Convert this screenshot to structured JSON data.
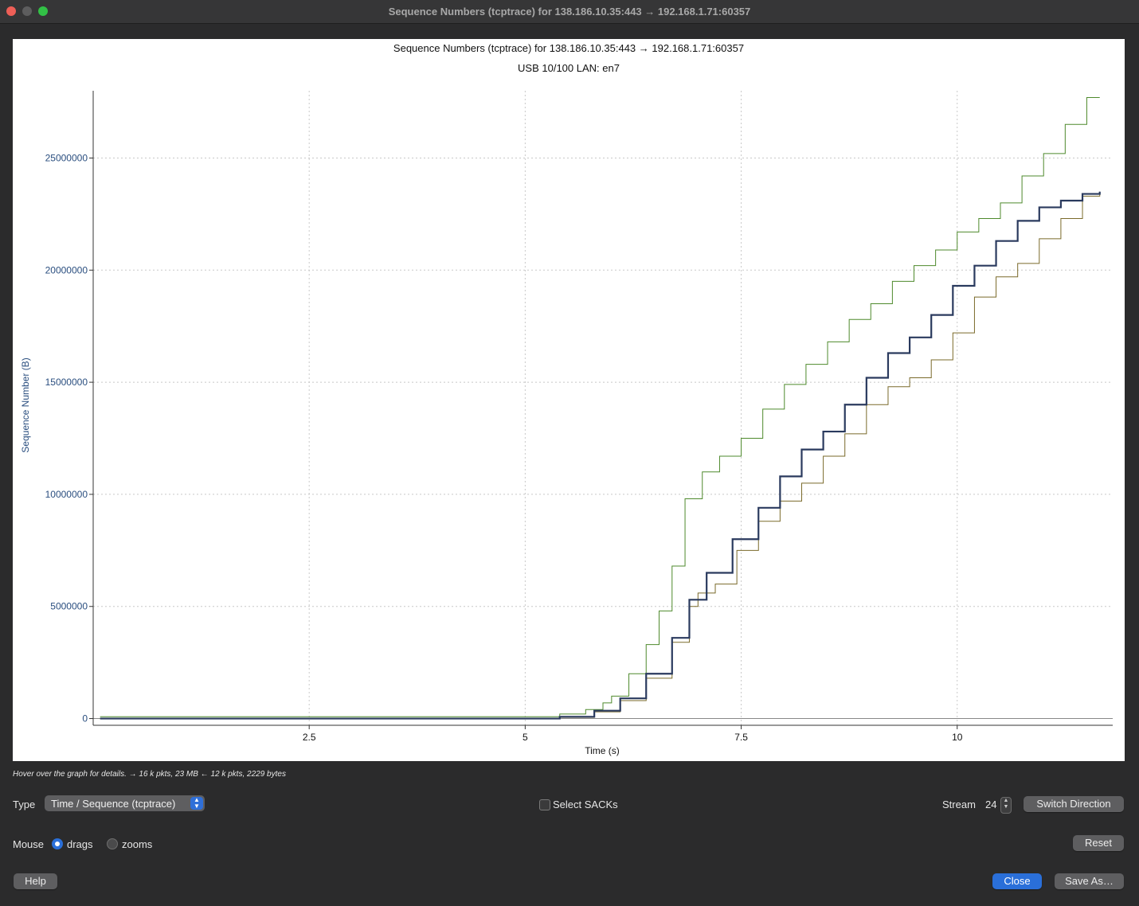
{
  "window": {
    "title": "Sequence Numbers (tcptrace) for 138.186.10.35:443 → 192.168.1.71:60357"
  },
  "plot": {
    "title": "Sequence Numbers (tcptrace) for 138.186.10.35:443 → 192.168.1.71:60357",
    "subtitle": "USB 10/100 LAN: en7",
    "hint": "Hover over the graph for details. → 16 k pkts, 23 MB ← 12 k pkts, 2229 bytes"
  },
  "chart_data": {
    "type": "line",
    "title": "Sequence Numbers (tcptrace) for 138.186.10.35:443 → 192.168.1.71:60357",
    "subtitle": "USB 10/100 LAN: en7",
    "xlabel": "Time (s)",
    "ylabel": "Sequence Number (B)",
    "xlim": [
      0,
      11.8
    ],
    "ylim": [
      -300000,
      28000000
    ],
    "x_ticks": [
      2.5,
      5,
      7.5,
      10
    ],
    "x_tick_labels": [
      "2.5",
      "5",
      "7.5",
      "10"
    ],
    "y_ticks": [
      0,
      5000000,
      10000000,
      15000000,
      20000000,
      25000000
    ],
    "y_tick_labels": [
      "0",
      "5000000",
      "10000000",
      "15000000",
      "20000000",
      "25000000"
    ],
    "grid": true,
    "series": [
      {
        "color": "#4e8a2c",
        "x": [
          0.08,
          5.0,
          5.4,
          5.7,
          5.9,
          6.0,
          6.2,
          6.4,
          6.55,
          6.7,
          6.85,
          7.05,
          7.25,
          7.5,
          7.75,
          8.0,
          8.25,
          8.5,
          8.75,
          9.0,
          9.25,
          9.5,
          9.75,
          10.0,
          10.25,
          10.5,
          10.75,
          11.0,
          11.25,
          11.5,
          11.65
        ],
        "y": [
          80000,
          80000,
          200000,
          400000,
          700000,
          1000000,
          2000000,
          3300000,
          4800000,
          6800000,
          9800000,
          11000000,
          11700000,
          12500000,
          13800000,
          14900000,
          15800000,
          16800000,
          17800000,
          18500000,
          19500000,
          20200000,
          20900000,
          21700000,
          22300000,
          23000000,
          24200000,
          25200000,
          26500000,
          27700000,
          27700000
        ]
      },
      {
        "color": "#7a6a2a",
        "x": [
          0.08,
          5.0,
          5.4,
          5.8,
          6.1,
          6.4,
          6.7,
          6.9,
          7.0,
          7.2,
          7.45,
          7.7,
          7.95,
          8.2,
          8.45,
          8.7,
          8.95,
          9.2,
          9.45,
          9.7,
          9.95,
          10.2,
          10.45,
          10.7,
          10.95,
          11.2,
          11.45,
          11.65
        ],
        "y": [
          0,
          0,
          50000,
          300000,
          800000,
          1800000,
          3400000,
          5000000,
          5600000,
          6000000,
          7500000,
          8800000,
          9700000,
          10500000,
          11700000,
          12700000,
          14000000,
          14800000,
          15200000,
          16000000,
          17200000,
          18800000,
          19700000,
          20300000,
          21400000,
          22300000,
          23300000,
          23500000
        ]
      },
      {
        "color": "#2a3a5e",
        "x": [
          0.08,
          5.0,
          5.4,
          5.8,
          6.1,
          6.4,
          6.7,
          6.9,
          7.1,
          7.4,
          7.7,
          7.95,
          8.2,
          8.45,
          8.7,
          8.95,
          9.2,
          9.45,
          9.7,
          9.95,
          10.2,
          10.45,
          10.7,
          10.95,
          11.2,
          11.45,
          11.65
        ],
        "y": [
          0,
          0,
          80000,
          350000,
          900000,
          2000000,
          3600000,
          5300000,
          6500000,
          8000000,
          9400000,
          10800000,
          12000000,
          12800000,
          14000000,
          15200000,
          16300000,
          17000000,
          18000000,
          19300000,
          20200000,
          21300000,
          22200000,
          22800000,
          23100000,
          23400000,
          23500000
        ]
      }
    ]
  },
  "controls": {
    "type_label": "Type",
    "type_value": "Time / Sequence (tcptrace)",
    "select_sacks_label": "Select SACKs",
    "stream_label": "Stream",
    "stream_value": "24",
    "switch_direction": "Switch Direction",
    "mouse_label": "Mouse",
    "drags_label": "drags",
    "zooms_label": "zooms",
    "reset": "Reset",
    "help": "Help",
    "close": "Close",
    "save_as": "Save As…"
  }
}
